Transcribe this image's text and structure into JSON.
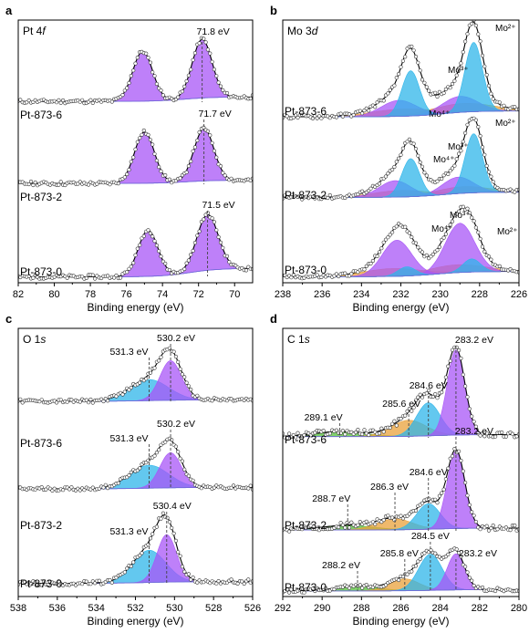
{
  "colors": {
    "purple": "#a855f7",
    "blue": "#2fb6ea",
    "orange": "#e9a23b",
    "green": "#55c23a",
    "mo3_label": "#9b4dd6",
    "mo4_label": "#c59017",
    "line": "#000000"
  },
  "chart_data": [
    {
      "letter": "a",
      "title": "Pt 4f",
      "type": "line",
      "xlabel": "Binding energy (eV)",
      "xlim": [
        82,
        69
      ],
      "xticks": [
        "82",
        "80",
        "78",
        "76",
        "74",
        "72",
        "70"
      ],
      "series": [
        {
          "name": "Pt-873-6",
          "peak_labels": [
            {
              "text": "71.8 eV",
              "x": 71.8
            }
          ],
          "components": [
            {
              "center": 71.8,
              "color": "purple"
            },
            {
              "center": 75.1,
              "color": "purple"
            }
          ]
        },
        {
          "name": "Pt-873-2",
          "peak_labels": [
            {
              "text": "71.7 eV",
              "x": 71.7
            }
          ],
          "components": [
            {
              "center": 71.7,
              "color": "purple"
            },
            {
              "center": 75.0,
              "color": "purple"
            }
          ]
        },
        {
          "name": "Pt-873-0",
          "peak_labels": [
            {
              "text": "71.5 eV",
              "x": 71.5
            }
          ],
          "components": [
            {
              "center": 71.5,
              "color": "purple"
            },
            {
              "center": 74.8,
              "color": "purple"
            }
          ]
        }
      ]
    },
    {
      "letter": "b",
      "title": "Mo 3d",
      "type": "line",
      "xlabel": "Binding energy (eV)",
      "xlim": [
        238,
        226
      ],
      "xticks": [
        "238",
        "236",
        "234",
        "232",
        "230",
        "228",
        "226"
      ],
      "series": [
        {
          "name": "Pt-873-6",
          "species_labels": [
            "Mo²⁺",
            "Mo³⁺",
            "Mo⁴⁺"
          ]
        },
        {
          "name": "Pt-873-2",
          "species_labels": [
            "Mo²⁺",
            "Mo³⁺",
            "Mo⁴⁺"
          ]
        },
        {
          "name": "Pt-873-0",
          "species_labels": [
            "Mo²⁺",
            "Mo³⁺",
            "Mo⁴⁺"
          ]
        }
      ]
    },
    {
      "letter": "c",
      "title": "O 1s",
      "type": "line",
      "xlabel": "Binding energy (eV)",
      "xlim": [
        538,
        526
      ],
      "xticks": [
        "538",
        "536",
        "534",
        "532",
        "530",
        "528",
        "526"
      ],
      "series": [
        {
          "name": "Pt-873-6",
          "peak_labels": [
            {
              "text": "531.3 eV",
              "x": 531.3
            },
            {
              "text": "530.2 eV",
              "x": 530.2
            }
          ]
        },
        {
          "name": "Pt-873-2",
          "peak_labels": [
            {
              "text": "531.3 eV",
              "x": 531.3
            },
            {
              "text": "530.2 eV",
              "x": 530.2
            }
          ]
        },
        {
          "name": "Pt-873-0",
          "peak_labels": [
            {
              "text": "531.3 eV",
              "x": 531.3
            },
            {
              "text": "530.4 eV",
              "x": 530.4
            }
          ]
        }
      ]
    },
    {
      "letter": "d",
      "title": "C 1s",
      "type": "line",
      "xlabel": "Binding energy (eV)",
      "xlim": [
        292,
        280
      ],
      "xticks": [
        "292",
        "290",
        "288",
        "286",
        "284",
        "282",
        "280"
      ],
      "series": [
        {
          "name": "Pt-873-6",
          "peak_labels": [
            {
              "text": "289.1 eV",
              "x": 289.1
            },
            {
              "text": "285.6 eV",
              "x": 285.6
            },
            {
              "text": "284.6 eV",
              "x": 284.6
            },
            {
              "text": "283.2 eV",
              "x": 283.2
            }
          ]
        },
        {
          "name": "Pt-873-2",
          "peak_labels": [
            {
              "text": "288.7 eV",
              "x": 288.7
            },
            {
              "text": "286.3 eV",
              "x": 286.3
            },
            {
              "text": "284.6 eV",
              "x": 284.6
            },
            {
              "text": "283.2 eV",
              "x": 283.2
            }
          ]
        },
        {
          "name": "Pt-873-0",
          "peak_labels": [
            {
              "text": "288.2 eV",
              "x": 288.2
            },
            {
              "text": "285.8 eV",
              "x": 285.8
            },
            {
              "text": "284.5 eV",
              "x": 284.5
            },
            {
              "text": "283.2 eV",
              "x": 283.2
            }
          ]
        }
      ]
    }
  ]
}
